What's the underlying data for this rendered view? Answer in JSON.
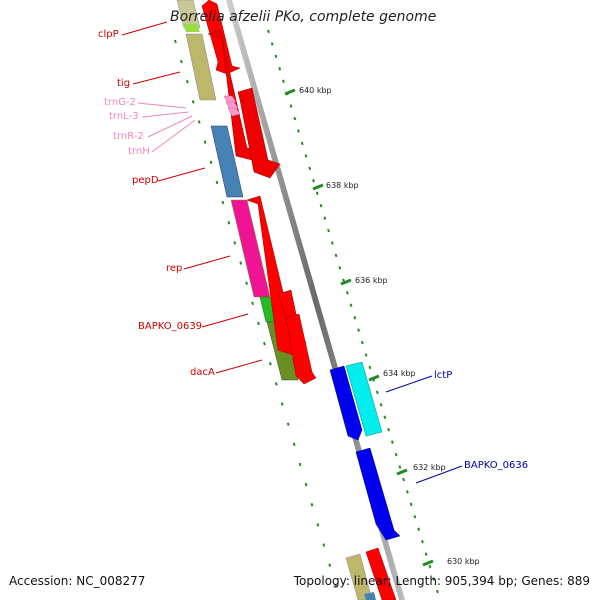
{
  "title": "Borrelia afzelii PKo, complete genome",
  "footer": {
    "accession": "Accession: NC_008277",
    "meta": "Topology: linear; Length: 905,394 bp; Genes: 889"
  },
  "tick_labels": [
    "640 kbp",
    "638 kbp",
    "636 kbp",
    "634 kbp",
    "632 kbp",
    "630 kbp"
  ],
  "genes": [
    {
      "name": "clpP",
      "color": "#cc0000"
    },
    {
      "name": "tig",
      "color": "#cc0000"
    },
    {
      "name": "trnG-2",
      "color": "#ee88bb"
    },
    {
      "name": "trnL-3",
      "color": "#ee88bb"
    },
    {
      "name": "trnR-2",
      "color": "#ee88bb"
    },
    {
      "name": "trnH",
      "color": "#ee88bb"
    },
    {
      "name": "pepD",
      "color": "#cc0000"
    },
    {
      "name": "rep",
      "color": "#cc0000"
    },
    {
      "name": "BAPKO_0639",
      "color": "#cc0000"
    },
    {
      "name": "dacA",
      "color": "#cc0000"
    },
    {
      "name": "lctP",
      "color": "#0000aa"
    },
    {
      "name": "BAPKO_0636",
      "color": "#0000aa"
    }
  ],
  "colors": {
    "cds": "#ff0000",
    "cds_blue": "#0000ee",
    "cyan": "#00eeee",
    "olive": "#bdb76b",
    "steelblue": "#4682b4",
    "magenta": "#ee1493",
    "green": "#22bb22",
    "darkolive": "#6b8e23",
    "trna": "#ff99cc",
    "backbone": "#999999",
    "tick": "#228b22"
  }
}
